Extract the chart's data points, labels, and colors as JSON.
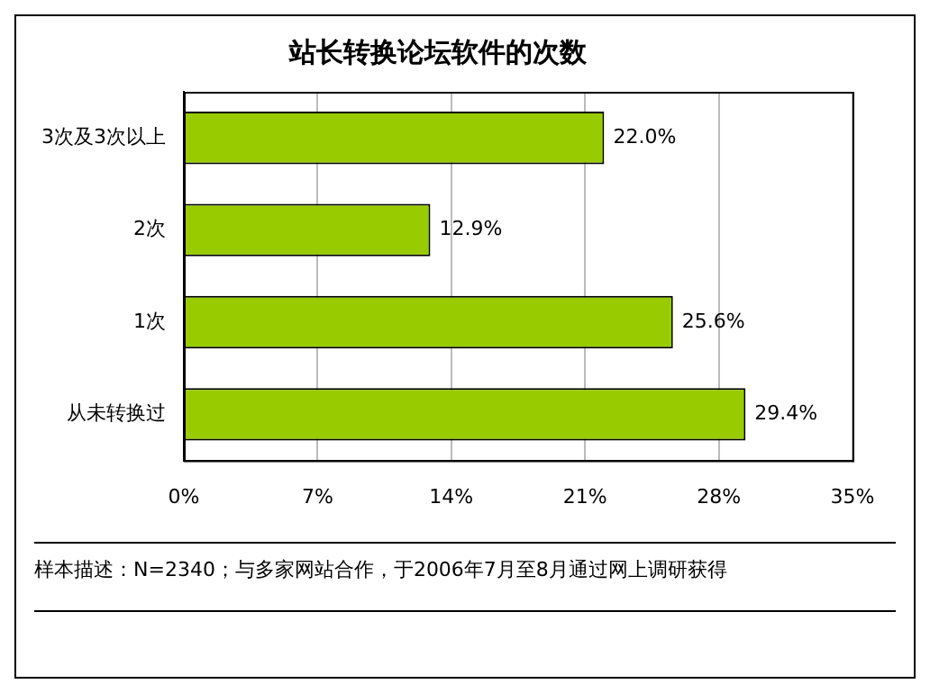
{
  "chart_data": {
    "type": "bar",
    "orientation": "horizontal",
    "title": "站长转换论坛软件的次数",
    "categories": [
      "3次及3次以上",
      "2次",
      "1次",
      "从未转换过"
    ],
    "values": [
      22.0,
      12.9,
      25.6,
      29.4
    ],
    "color": "#99cc00",
    "value_labels": [
      "22.0%",
      "12.9%",
      "25.6%",
      "29.4%"
    ],
    "xlim": [
      0,
      35
    ],
    "xticks": [
      {
        "value": 0,
        "label": "0%"
      },
      {
        "value": 7,
        "label": "7%"
      },
      {
        "value": 14,
        "label": "14%"
      },
      {
        "value": 21,
        "label": "21%"
      },
      {
        "value": 28,
        "label": "28%"
      },
      {
        "value": 35,
        "label": "35%"
      }
    ],
    "grid": "x",
    "legend": false,
    "annotations": [
      "样本描述：N=2340；与多家网站合作，于2006年7月至8月通过网上调研获得"
    ]
  }
}
